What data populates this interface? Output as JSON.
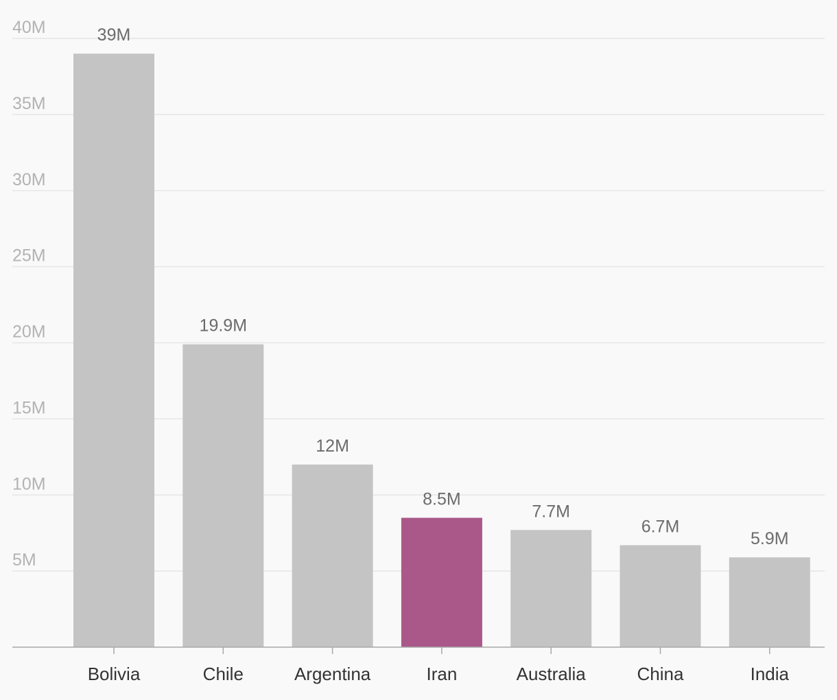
{
  "chart_data": {
    "type": "bar",
    "title": "",
    "xlabel": "",
    "ylabel": "",
    "categories": [
      "Bolivia",
      "Chile",
      "Argentina",
      "Iran",
      "Australia",
      "China",
      "India"
    ],
    "values": [
      39000000,
      19900000,
      12000000,
      8500000,
      7700000,
      6700000,
      5900000
    ],
    "value_labels": [
      "39M",
      "19.9M",
      "12M",
      "8.5M",
      "7.7M",
      "6.7M",
      "5.9M"
    ],
    "highlight_category": "Iran",
    "ylim": [
      0,
      40000000
    ],
    "y_ticks": [
      {
        "value": 5000000,
        "label": "5M"
      },
      {
        "value": 10000000,
        "label": "10M"
      },
      {
        "value": 15000000,
        "label": "15M"
      },
      {
        "value": 20000000,
        "label": "20M"
      },
      {
        "value": 25000000,
        "label": "25M"
      },
      {
        "value": 30000000,
        "label": "30M"
      },
      {
        "value": 35000000,
        "label": "35M"
      },
      {
        "value": 40000000,
        "label": "40M"
      }
    ],
    "grid": true,
    "colors": {
      "bar": "#c4c4c4",
      "highlight": "#a95889"
    }
  }
}
